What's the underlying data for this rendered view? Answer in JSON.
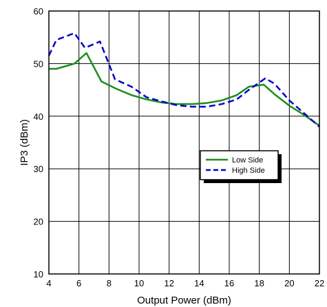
{
  "chart_data": {
    "type": "line",
    "xlabel": "Output Power (dBm)",
    "ylabel": "IP3 (dBm)",
    "xlim": [
      4,
      22
    ],
    "ylim": [
      10,
      60
    ],
    "xticks": [
      4,
      6,
      8,
      10,
      12,
      14,
      16,
      18,
      20,
      22
    ],
    "yticks": [
      10,
      20,
      30,
      40,
      50,
      60
    ],
    "grid": true,
    "legend_position": "center-right",
    "series": [
      {
        "name": "Low Side",
        "color": "#1a8c1a",
        "style": "solid",
        "x": [
          4,
          4.5,
          5.7,
          6.5,
          7.5,
          8.5,
          9.5,
          10.5,
          11.5,
          12.5,
          13.5,
          14.5,
          15.5,
          16.5,
          17.3,
          18.3,
          19,
          20,
          21,
          22
        ],
        "y": [
          49,
          49,
          50,
          52,
          46.6,
          45.2,
          44,
          43.2,
          42.6,
          42.3,
          42.3,
          42.5,
          43,
          44,
          45.6,
          46,
          44.2,
          42,
          40.2,
          38.2
        ]
      },
      {
        "name": "High Side",
        "color": "#0000cc",
        "style": "dashed",
        "x": [
          4,
          4.5,
          5.7,
          6.4,
          7.4,
          8.4,
          9.5,
          10.5,
          11.5,
          12.5,
          13.5,
          14.5,
          15.5,
          16.5,
          17.3,
          18.4,
          19,
          20,
          21,
          22
        ],
        "y": [
          51.5,
          54.5,
          55.8,
          53,
          54.2,
          47,
          45.6,
          43.6,
          42.8,
          42.1,
          41.8,
          41.8,
          42.3,
          43.2,
          45,
          47.2,
          46.2,
          43,
          40.5,
          38
        ]
      }
    ]
  }
}
